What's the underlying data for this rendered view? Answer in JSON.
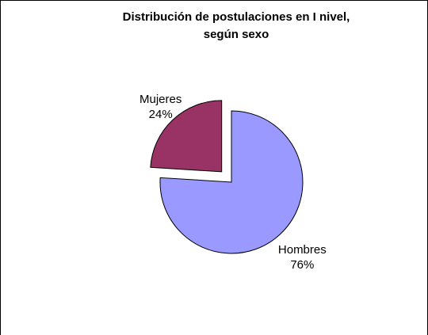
{
  "chart_data": {
    "type": "pie",
    "title": [
      "Distribución de postulaciones en I nivel,",
      "según sexo"
    ],
    "categories": [
      "Hombres",
      "Mujeres"
    ],
    "values": [
      76,
      24
    ],
    "value_labels": [
      "76%",
      "24%"
    ],
    "colors": [
      "#9999ff",
      "#993366"
    ],
    "explode": [
      false,
      true
    ]
  }
}
